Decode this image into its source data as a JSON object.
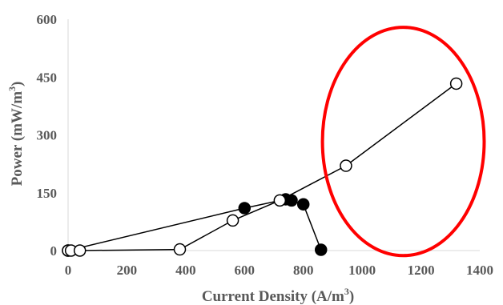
{
  "chart_data": {
    "type": "scatter",
    "xlabel": "Current Density (A/m³)",
    "xlabel_main": "Current Density (A/m",
    "xlabel_sup": "3",
    "xlabel_tail": ")",
    "ylabel": "Power  (mW/m³)",
    "ylabel_main": "Power  (mW/m",
    "ylabel_sup": "3",
    "ylabel_tail": ")",
    "xlim": [
      0,
      1400
    ],
    "ylim": [
      0,
      600
    ],
    "x_ticks": [
      "0",
      "200",
      "400",
      "600",
      "800",
      "1000",
      "1200",
      "1400"
    ],
    "y_ticks": [
      "0",
      "150",
      "300",
      "450",
      "600"
    ],
    "grid": false,
    "legend": "none",
    "series": [
      {
        "marker": "filled-circle",
        "color": "#000000",
        "points": [
          [
            0,
            0
          ],
          [
            600,
            110
          ],
          [
            740,
            133
          ],
          [
            760,
            130
          ],
          [
            800,
            120
          ],
          [
            860,
            2
          ]
        ]
      },
      {
        "marker": "open-circle",
        "color": "#000000",
        "points": [
          [
            0,
            0
          ],
          [
            10,
            0
          ],
          [
            40,
            0
          ],
          [
            380,
            3
          ],
          [
            560,
            78
          ],
          [
            720,
            130
          ],
          [
            945,
            220
          ],
          [
            1320,
            433
          ]
        ]
      }
    ],
    "annotations": [
      {
        "type": "ellipse",
        "color": "#ff0000",
        "cx": 1140,
        "cy": 283,
        "rx": 275,
        "ry": 296
      }
    ]
  }
}
